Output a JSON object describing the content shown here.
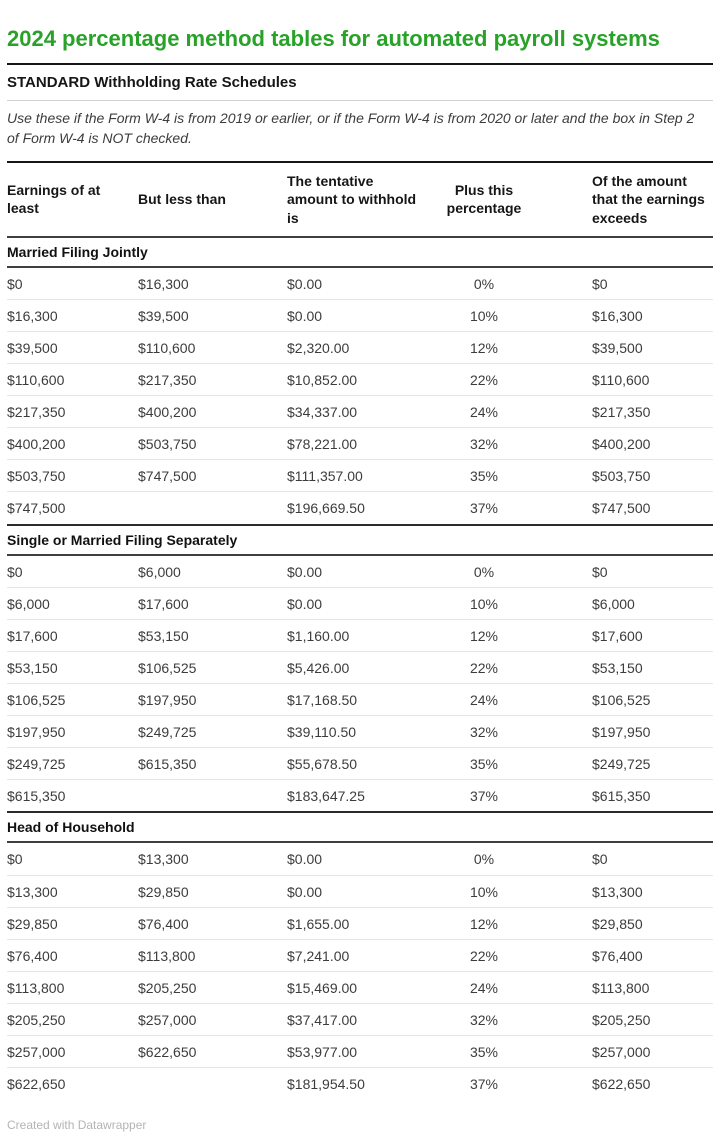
{
  "colors": {
    "title_green": "#28a228",
    "rule_dark": "#161616",
    "row_divider": "#e5e5e5"
  },
  "chart_data": {
    "type": "table",
    "title": "2024 percentage method tables for automated payroll systems",
    "subtitle": "STANDARD Withholding Rate Schedules",
    "note": "Use these if the Form W-4 is from 2019 or earlier, or if the Form W-4 is from 2020 or later and the box in Step 2 of Form W-4 is NOT checked.",
    "columns": [
      "Earnings of at least",
      "But less than",
      "The tentative amount to withhold is",
      "Plus this percentage",
      "Of the amount that the earnings exceeds"
    ],
    "sections": [
      {
        "name": "Married Filing Jointly",
        "rows": [
          [
            "$0",
            "$16,300",
            "$0.00",
            "0%",
            "$0"
          ],
          [
            "$16,300",
            "$39,500",
            "$0.00",
            "10%",
            "$16,300"
          ],
          [
            "$39,500",
            "$110,600",
            "$2,320.00",
            "12%",
            "$39,500"
          ],
          [
            "$110,600",
            "$217,350",
            "$10,852.00",
            "22%",
            "$110,600"
          ],
          [
            "$217,350",
            "$400,200",
            "$34,337.00",
            "24%",
            "$217,350"
          ],
          [
            "$400,200",
            "$503,750",
            "$78,221.00",
            "32%",
            "$400,200"
          ],
          [
            "$503,750",
            "$747,500",
            "$111,357.00",
            "35%",
            "$503,750"
          ],
          [
            "$747,500",
            "",
            "$196,669.50",
            "37%",
            "$747,500"
          ]
        ]
      },
      {
        "name": "Single or Married Filing Separately",
        "rows": [
          [
            "$0",
            "$6,000",
            "$0.00",
            "0%",
            "$0"
          ],
          [
            "$6,000",
            "$17,600",
            "$0.00",
            "10%",
            "$6,000"
          ],
          [
            "$17,600",
            "$53,150",
            "$1,160.00",
            "12%",
            "$17,600"
          ],
          [
            "$53,150",
            "$106,525",
            "$5,426.00",
            "22%",
            "$53,150"
          ],
          [
            "$106,525",
            "$197,950",
            "$17,168.50",
            "24%",
            "$106,525"
          ],
          [
            "$197,950",
            "$249,725",
            "$39,110.50",
            "32%",
            "$197,950"
          ],
          [
            "$249,725",
            "$615,350",
            "$55,678.50",
            "35%",
            "$249,725"
          ],
          [
            "$615,350",
            "",
            "$183,647.25",
            "37%",
            "$615,350"
          ]
        ]
      },
      {
        "name": "Head of Household",
        "rows": [
          [
            "$0",
            "$13,300",
            "$0.00",
            "0%",
            "$0"
          ],
          [
            "$13,300",
            "$29,850",
            "$0.00",
            "10%",
            "$13,300"
          ],
          [
            "$29,850",
            "$76,400",
            "$1,655.00",
            "12%",
            "$29,850"
          ],
          [
            "$76,400",
            "$113,800",
            "$7,241.00",
            "22%",
            "$76,400"
          ],
          [
            "$113,800",
            "$205,250",
            "$15,469.00",
            "24%",
            "$113,800"
          ],
          [
            "$205,250",
            "$257,000",
            "$37,417.00",
            "32%",
            "$205,250"
          ],
          [
            "$257,000",
            "$622,650",
            "$53,977.00",
            "35%",
            "$257,000"
          ],
          [
            "$622,650",
            "",
            "$181,954.50",
            "37%",
            "$622,650"
          ]
        ]
      }
    ],
    "footer": "Created with Datawrapper"
  }
}
